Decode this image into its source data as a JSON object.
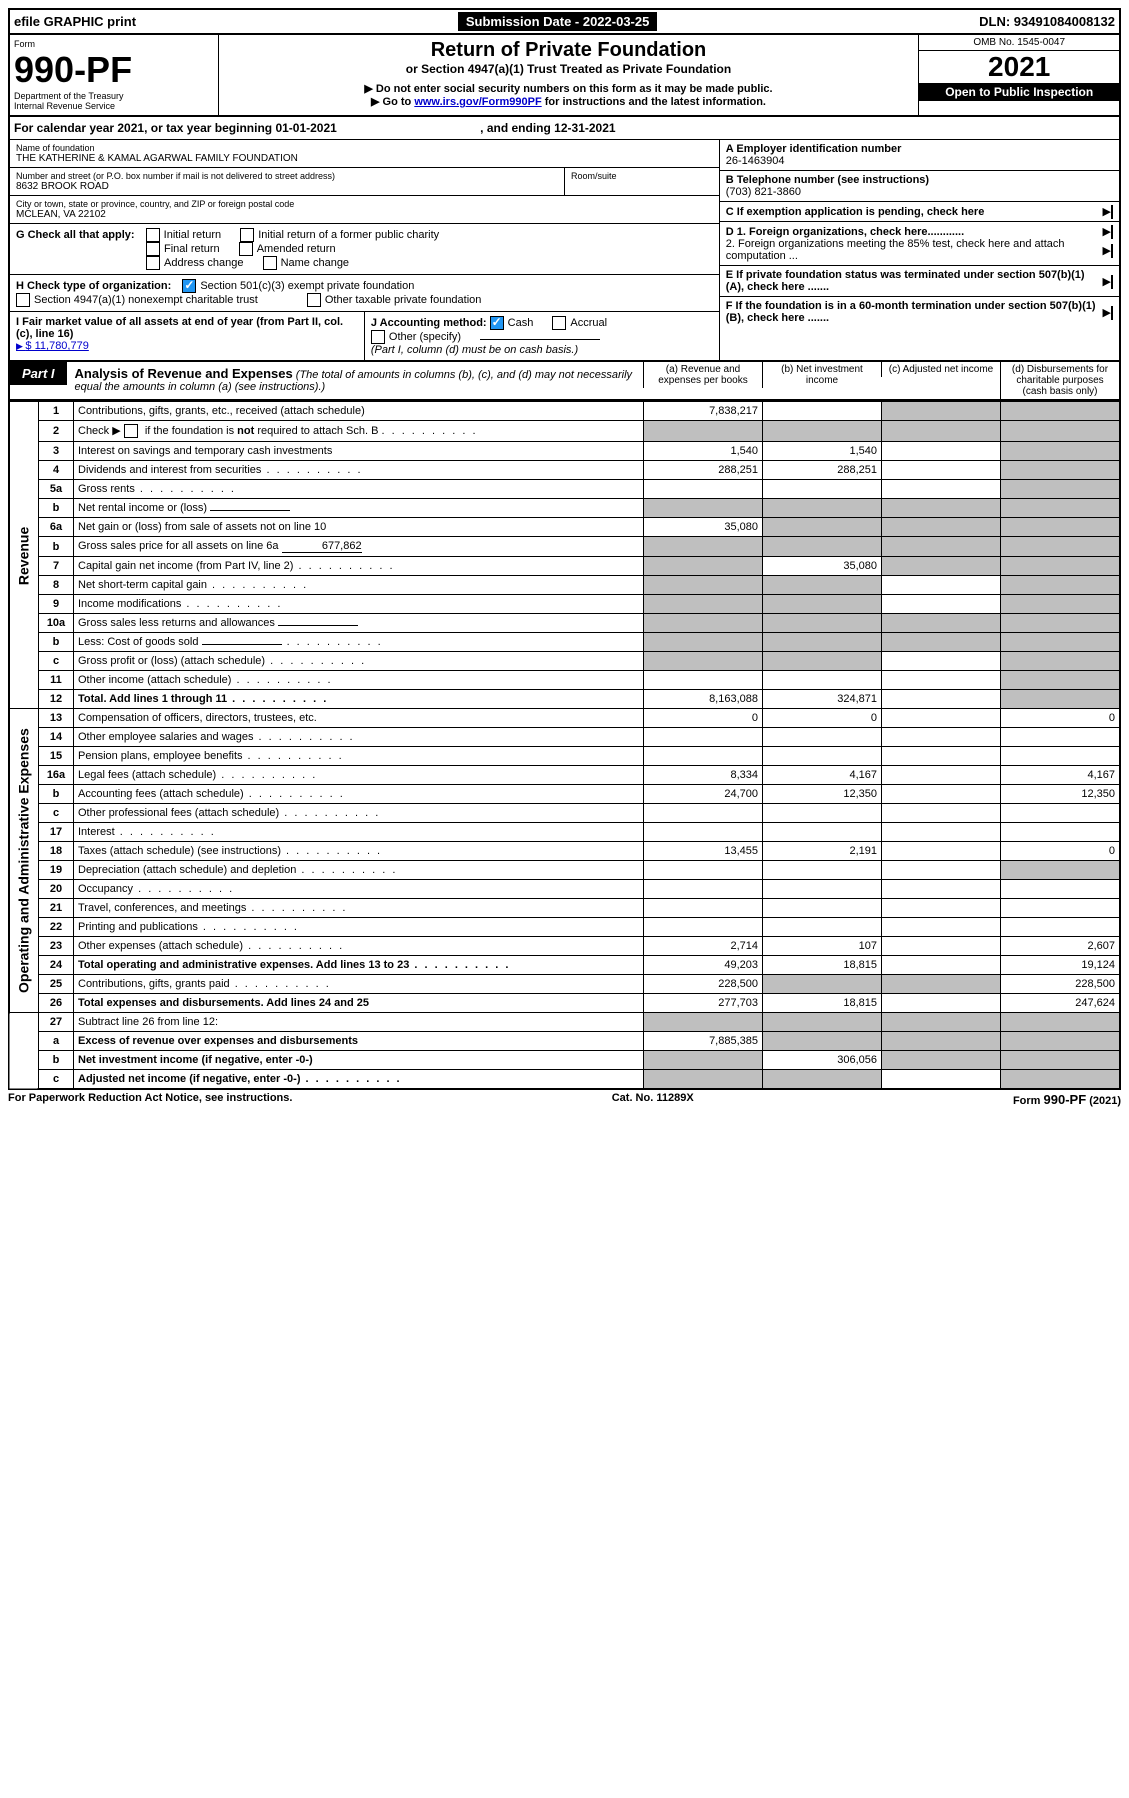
{
  "topbar": {
    "efile": "efile GRAPHIC print",
    "sub_label": "Submission Date - 2022-03-25",
    "dln": "DLN: 93491084008132"
  },
  "header": {
    "form_label": "Form",
    "form_no": "990-PF",
    "dept1": "Department of the Treasury",
    "dept2": "Internal Revenue Service",
    "title": "Return of Private Foundation",
    "subtitle": "or Section 4947(a)(1) Trust Treated as Private Foundation",
    "note1": "▶ Do not enter social security numbers on this form as it may be made public.",
    "note2_pre": "▶ Go to ",
    "note2_link": "www.irs.gov/Form990PF",
    "note2_post": " for instructions and the latest information.",
    "omb": "OMB No. 1545-0047",
    "year": "2021",
    "open": "Open to Public Inspection"
  },
  "calyear": {
    "text_a": "For calendar year 2021, or tax year beginning 01-01-2021",
    "text_b": ", and ending 12-31-2021"
  },
  "info": {
    "name_lbl": "Name of foundation",
    "name": "THE KATHERINE & KAMAL AGARWAL FAMILY FOUNDATION",
    "addr_lbl": "Number and street (or P.O. box number if mail is not delivered to street address)",
    "addr": "8632 BROOK ROAD",
    "room_lbl": "Room/suite",
    "city_lbl": "City or town, state or province, country, and ZIP or foreign postal code",
    "city": "MCLEAN, VA  22102",
    "a_lbl": "A Employer identification number",
    "a_val": "26-1463904",
    "b_lbl": "B Telephone number (see instructions)",
    "b_val": "(703) 821-3860",
    "c_lbl": "C If exemption application is pending, check here",
    "d1": "D 1. Foreign organizations, check here............",
    "d2": "2. Foreign organizations meeting the 85% test, check here and attach computation ...",
    "e": "E  If private foundation status was terminated under section 507(b)(1)(A), check here .......",
    "f": "F  If the foundation is in a 60-month termination under section 507(b)(1)(B), check here .......",
    "g_lbl": "G Check all that apply:",
    "g_opts": [
      "Initial return",
      "Final return",
      "Address change",
      "Initial return of a former public charity",
      "Amended return",
      "Name change"
    ],
    "h_lbl": "H Check type of organization:",
    "h1": "Section 501(c)(3) exempt private foundation",
    "h2": "Section 4947(a)(1) nonexempt charitable trust",
    "h3": "Other taxable private foundation",
    "i_lbl": "I Fair market value of all assets at end of year (from Part II, col. (c), line 16)",
    "i_val": "$  11,780,779",
    "j_lbl": "J Accounting method:",
    "j_cash": "Cash",
    "j_acc": "Accrual",
    "j_other": "Other (specify)",
    "j_note": "(Part I, column (d) must be on cash basis.)"
  },
  "part1": {
    "tag": "Part I",
    "title": "Analysis of Revenue and Expenses",
    "note": " (The total of amounts in columns (b), (c), and (d) may not necessarily equal the amounts in column (a) (see instructions).)",
    "col_a": "(a)   Revenue and expenses per books",
    "col_b": "(b)   Net investment income",
    "col_c": "(c)   Adjusted net income",
    "col_d": "(d)   Disbursements for charitable purposes (cash basis only)"
  },
  "sides": {
    "rev": "Revenue",
    "exp": "Operating and Administrative Expenses"
  },
  "rows": [
    {
      "n": "1",
      "d": "Contributions, gifts, grants, etc., received (attach schedule)",
      "a": "7,838,217",
      "b": "",
      "c": "sh",
      "dd": "sh"
    },
    {
      "n": "2",
      "d": "Check ▶ ☐ if the foundation is not required to attach Sch. B",
      "a": "sh",
      "b": "sh",
      "c": "sh",
      "dd": "sh",
      "dots": true,
      "bold_not": true
    },
    {
      "n": "3",
      "d": "Interest on savings and temporary cash investments",
      "a": "1,540",
      "b": "1,540",
      "c": "",
      "dd": "sh"
    },
    {
      "n": "4",
      "d": "Dividends and interest from securities",
      "a": "288,251",
      "b": "288,251",
      "c": "",
      "dd": "sh",
      "dots": true
    },
    {
      "n": "5a",
      "d": "Gross rents",
      "a": "",
      "b": "",
      "c": "",
      "dd": "sh",
      "dots": true
    },
    {
      "n": "b",
      "d": "Net rental income or (loss)",
      "a": "sh",
      "b": "sh",
      "c": "sh",
      "dd": "sh",
      "inline": true
    },
    {
      "n": "6a",
      "d": "Net gain or (loss) from sale of assets not on line 10",
      "a": "35,080",
      "b": "sh",
      "c": "sh",
      "dd": "sh"
    },
    {
      "n": "b",
      "d": "Gross sales price for all assets on line 6a",
      "a": "sh",
      "b": "sh",
      "c": "sh",
      "dd": "sh",
      "inline": true,
      "inline_val": "677,862"
    },
    {
      "n": "7",
      "d": "Capital gain net income (from Part IV, line 2)",
      "a": "sh",
      "b": "35,080",
      "c": "sh",
      "dd": "sh",
      "dots": true
    },
    {
      "n": "8",
      "d": "Net short-term capital gain",
      "a": "sh",
      "b": "sh",
      "c": "",
      "dd": "sh",
      "dots": true
    },
    {
      "n": "9",
      "d": "Income modifications",
      "a": "sh",
      "b": "sh",
      "c": "",
      "dd": "sh",
      "dots": true
    },
    {
      "n": "10a",
      "d": "Gross sales less returns and allowances",
      "a": "sh",
      "b": "sh",
      "c": "sh",
      "dd": "sh",
      "inline": true
    },
    {
      "n": "b",
      "d": "Less: Cost of goods sold",
      "a": "sh",
      "b": "sh",
      "c": "sh",
      "dd": "sh",
      "inline": true,
      "dots": true
    },
    {
      "n": "c",
      "d": "Gross profit or (loss) (attach schedule)",
      "a": "sh",
      "b": "sh",
      "c": "",
      "dd": "sh",
      "dots": true
    },
    {
      "n": "11",
      "d": "Other income (attach schedule)",
      "a": "",
      "b": "",
      "c": "",
      "dd": "sh",
      "dots": true
    },
    {
      "n": "12",
      "d": "Total. Add lines 1 through 11",
      "a": "8,163,088",
      "b": "324,871",
      "c": "",
      "dd": "sh",
      "dots": true,
      "bold": true
    },
    {
      "n": "13",
      "d": "Compensation of officers, directors, trustees, etc.",
      "a": "0",
      "b": "0",
      "c": "",
      "dd": "0",
      "sec": "exp"
    },
    {
      "n": "14",
      "d": "Other employee salaries and wages",
      "a": "",
      "b": "",
      "c": "",
      "dd": "",
      "dots": true
    },
    {
      "n": "15",
      "d": "Pension plans, employee benefits",
      "a": "",
      "b": "",
      "c": "",
      "dd": "",
      "dots": true
    },
    {
      "n": "16a",
      "d": "Legal fees (attach schedule)",
      "a": "8,334",
      "b": "4,167",
      "c": "",
      "dd": "4,167",
      "dots": true
    },
    {
      "n": "b",
      "d": "Accounting fees (attach schedule)",
      "a": "24,700",
      "b": "12,350",
      "c": "",
      "dd": "12,350",
      "dots": true
    },
    {
      "n": "c",
      "d": "Other professional fees (attach schedule)",
      "a": "",
      "b": "",
      "c": "",
      "dd": "",
      "dots": true
    },
    {
      "n": "17",
      "d": "Interest",
      "a": "",
      "b": "",
      "c": "",
      "dd": "",
      "dots": true
    },
    {
      "n": "18",
      "d": "Taxes (attach schedule) (see instructions)",
      "a": "13,455",
      "b": "2,191",
      "c": "",
      "dd": "0",
      "dots": true
    },
    {
      "n": "19",
      "d": "Depreciation (attach schedule) and depletion",
      "a": "",
      "b": "",
      "c": "",
      "dd": "sh",
      "dots": true
    },
    {
      "n": "20",
      "d": "Occupancy",
      "a": "",
      "b": "",
      "c": "",
      "dd": "",
      "dots": true
    },
    {
      "n": "21",
      "d": "Travel, conferences, and meetings",
      "a": "",
      "b": "",
      "c": "",
      "dd": "",
      "dots": true
    },
    {
      "n": "22",
      "d": "Printing and publications",
      "a": "",
      "b": "",
      "c": "",
      "dd": "",
      "dots": true
    },
    {
      "n": "23",
      "d": "Other expenses (attach schedule)",
      "a": "2,714",
      "b": "107",
      "c": "",
      "dd": "2,607",
      "dots": true
    },
    {
      "n": "24",
      "d": "Total operating and administrative expenses. Add lines 13 to 23",
      "a": "49,203",
      "b": "18,815",
      "c": "",
      "dd": "19,124",
      "bold": true,
      "dots": true
    },
    {
      "n": "25",
      "d": "Contributions, gifts, grants paid",
      "a": "228,500",
      "b": "sh",
      "c": "sh",
      "dd": "228,500",
      "dots": true
    },
    {
      "n": "26",
      "d": "Total expenses and disbursements. Add lines 24 and 25",
      "a": "277,703",
      "b": "18,815",
      "c": "",
      "dd": "247,624",
      "bold": true
    },
    {
      "n": "27",
      "d": "Subtract line 26 from line 12:",
      "a": "sh",
      "b": "sh",
      "c": "sh",
      "dd": "sh"
    },
    {
      "n": "a",
      "d": "Excess of revenue over expenses and disbursements",
      "a": "7,885,385",
      "b": "sh",
      "c": "sh",
      "dd": "sh",
      "bold": true
    },
    {
      "n": "b",
      "d": "Net investment income (if negative, enter -0-)",
      "a": "sh",
      "b": "306,056",
      "c": "sh",
      "dd": "sh",
      "bold": true
    },
    {
      "n": "c",
      "d": "Adjusted net income (if negative, enter -0-)",
      "a": "sh",
      "b": "sh",
      "c": "",
      "dd": "sh",
      "bold": true,
      "dots": true
    }
  ],
  "footer": {
    "left": "For Paperwork Reduction Act Notice, see instructions.",
    "mid": "Cat. No. 11289X",
    "right": "Form 990-PF (2021)"
  }
}
